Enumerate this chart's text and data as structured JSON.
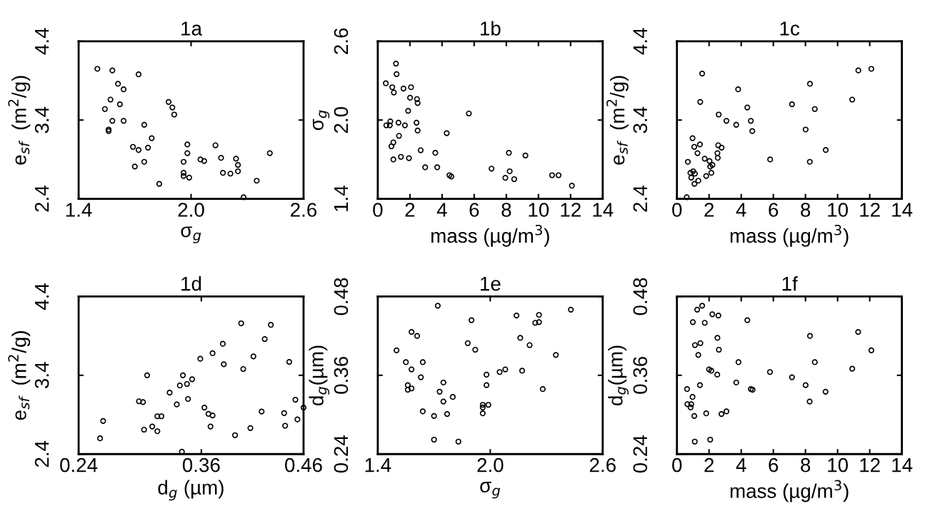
{
  "chart_data": [
    {
      "type": "scatter",
      "title": "1a",
      "xlabel": "σ$_{g}$",
      "ylabel": "e$_{sf}$  (m$^{2}$/g)",
      "xlim": [
        1.4,
        2.6
      ],
      "xticks": [
        1.4,
        {
          "value": 2.0,
          "label": "2.0"
        },
        2.6
      ],
      "ylim": [
        2.4,
        4.4
      ],
      "yticks": [
        2.4,
        3.4,
        4.4
      ],
      "marker": "circle",
      "grid": false,
      "series": [
        {
          "color": "#000000",
          "x": [
            1.5,
            1.58,
            1.72,
            1.61,
            1.64,
            1.57,
            1.62,
            1.54,
            1.58,
            1.64,
            1.56,
            1.56,
            1.75,
            1.88,
            1.9,
            1.91,
            1.79,
            1.69,
            1.72,
            1.77,
            1.75,
            1.7,
            1.83,
            1.98,
            1.98,
            1.96,
            1.96,
            1.96,
            1.99,
            2.05,
            2.07,
            2.13,
            2.16,
            2.17,
            2.21,
            2.24,
            2.25,
            2.25,
            2.35,
            2.42,
            2.28
          ],
          "values": [
            4.05,
            4.03,
            3.98,
            3.86,
            3.79,
            3.66,
            3.6,
            3.54,
            3.39,
            3.39,
            3.28,
            3.26,
            3.34,
            3.63,
            3.56,
            3.47,
            3.17,
            3.06,
            3.02,
            3.05,
            2.87,
            2.81,
            2.59,
            3.09,
            2.98,
            2.87,
            2.73,
            2.69,
            2.67,
            2.9,
            2.88,
            3.08,
            2.92,
            2.73,
            2.72,
            2.91,
            2.83,
            2.75,
            2.63,
            2.98,
            2.42
          ]
        }
      ]
    },
    {
      "type": "scatter",
      "title": "1b",
      "xlabel": "mass (µg/m$^{3}$)",
      "ylabel": "σ$_{g}$",
      "xlim": [
        0,
        14
      ],
      "xticks": [
        0,
        2,
        4,
        6,
        8,
        10,
        12,
        14
      ],
      "ylim": [
        1.4,
        2.6
      ],
      "yticks": [
        1.4,
        {
          "value": 2.0,
          "label": "2.0"
        },
        2.6
      ],
      "marker": "circle",
      "grid": false,
      "series": [
        {
          "color": "#000000",
          "x": [
            1.13,
            1.17,
            0.5,
            0.9,
            1.0,
            1.6,
            2.07,
            2.01,
            2.44,
            2.48,
            1.89,
            5.67,
            0.78,
            0.53,
            0.75,
            1.29,
            1.69,
            2.41,
            2.48,
            1.32,
            4.29,
            0.97,
            0.85,
            2.67,
            3.58,
            1.44,
            1.94,
            0.97,
            2.95,
            3.7,
            4.46,
            4.58,
            8.16,
            9.19,
            7.08,
            8.21,
            7.94,
            8.49,
            10.85,
            11.25,
            12.08
          ],
          "values": [
            2.43,
            2.35,
            2.28,
            2.25,
            2.21,
            2.24,
            2.25,
            2.17,
            2.16,
            2.13,
            2.07,
            2.05,
            1.99,
            1.96,
            1.96,
            1.98,
            1.96,
            1.98,
            1.92,
            1.88,
            1.9,
            1.83,
            1.8,
            1.77,
            1.75,
            1.72,
            1.71,
            1.7,
            1.64,
            1.64,
            1.58,
            1.57,
            1.75,
            1.73,
            1.63,
            1.61,
            1.56,
            1.55,
            1.58,
            1.58,
            1.5
          ]
        }
      ]
    },
    {
      "type": "scatter",
      "title": "1c",
      "xlabel": "mass (µg/m$^{3}$)",
      "ylabel": "e$_{sf}$  (m$^{2}$/g)",
      "xlim": [
        0,
        14
      ],
      "xticks": [
        0,
        2,
        4,
        6,
        8,
        10,
        12,
        14
      ],
      "ylim": [
        2.4,
        4.4
      ],
      "yticks": [
        2.4,
        3.4,
        4.4
      ],
      "marker": "circle",
      "grid": false,
      "series": [
        {
          "color": "#000000",
          "x": [
            1.57,
            12.1,
            11.29,
            8.28,
            3.81,
            1.45,
            7.16,
            10.91,
            4.38,
            8.58,
            2.6,
            3.08,
            4.6,
            3.69,
            4.69,
            8.01,
            0.97,
            1.08,
            1.43,
            1.28,
            2.57,
            2.78,
            2.52,
            2.54,
            9.26,
            0.68,
            1.73,
            2.03,
            2.21,
            2.07,
            5.8,
            8.27,
            0.84,
            1.01,
            1.12,
            2.14,
            0.89,
            1.82,
            1.33,
            1.09,
            0.61
          ],
          "values": [
            3.99,
            4.05,
            4.03,
            3.86,
            3.79,
            3.63,
            3.6,
            3.66,
            3.56,
            3.54,
            3.47,
            3.39,
            3.39,
            3.34,
            3.26,
            3.28,
            3.17,
            3.06,
            3.09,
            2.98,
            3.08,
            3.05,
            2.98,
            2.92,
            3.02,
            2.87,
            2.91,
            2.88,
            2.83,
            2.81,
            2.9,
            2.87,
            2.73,
            2.75,
            2.72,
            2.73,
            2.67,
            2.69,
            2.63,
            2.59,
            2.42
          ]
        }
      ]
    },
    {
      "type": "scatter",
      "title": "1d",
      "xlabel": "d$_{g}$ (µm)",
      "ylabel": "e$_{sf}$  (m$^{2}$/g)",
      "xlim": [
        0.24,
        0.46
      ],
      "xticks": [
        0.24,
        0.36,
        0.46
      ],
      "ylim": [
        2.4,
        4.4
      ],
      "yticks": [
        2.4,
        3.4,
        4.4
      ],
      "marker": "circle",
      "grid": false,
      "series": [
        {
          "color": "#000000",
          "x": [
            0.399,
            0.428,
            0.422,
            0.381,
            0.371,
            0.411,
            0.359,
            0.382,
            0.446,
            0.401,
            0.307,
            0.342,
            0.351,
            0.346,
            0.339,
            0.329,
            0.336,
            0.347,
            0.299,
            0.303,
            0.363,
            0.367,
            0.371,
            0.317,
            0.321,
            0.369,
            0.304,
            0.312,
            0.317,
            0.419,
            0.441,
            0.452,
            0.46,
            0.454,
            0.442,
            0.408,
            0.393,
            0.264,
            0.261,
            0.341
          ],
          "values": [
            4.06,
            4.04,
            3.86,
            3.8,
            3.68,
            3.64,
            3.61,
            3.54,
            3.57,
            3.48,
            3.4,
            3.4,
            3.35,
            3.29,
            3.27,
            3.18,
            3.03,
            3.1,
            3.07,
            3.06,
            2.99,
            2.91,
            2.89,
            2.88,
            2.88,
            2.75,
            2.71,
            2.75,
            2.69,
            2.94,
            2.92,
            3.09,
            2.99,
            2.84,
            2.76,
            2.73,
            2.64,
            2.82,
            2.6,
            2.43
          ]
        }
      ]
    },
    {
      "type": "scatter",
      "title": "1e",
      "xlabel": "σ$_{g}$",
      "ylabel": "d$_{g}$(µm)",
      "xlim": [
        1.4,
        2.6
      ],
      "xticks": [
        1.4,
        {
          "value": 2.0,
          "label": "2.0"
        },
        2.6
      ],
      "ylim": [
        0.24,
        0.48
      ],
      "yticks": [
        0.24,
        0.36,
        0.48
      ],
      "marker": "circle",
      "grid": false,
      "series": [
        {
          "color": "#000000",
          "x": [
            1.72,
            2.43,
            2.14,
            2.26,
            2.24,
            2.26,
            1.9,
            1.58,
            1.61,
            2.16,
            1.88,
            2.21,
            1.92,
            1.5,
            2.35,
            1.55,
            1.64,
            1.58,
            2.08,
            2.05,
            2.17,
            1.98,
            1.63,
            1.75,
            1.98,
            1.56,
            1.58,
            1.56,
            2.28,
            1.73,
            1.8,
            1.75,
            1.96,
            1.99,
            1.96,
            1.96,
            1.64,
            1.7,
            1.77,
            1.7,
            1.83
          ],
          "values": [
            0.466,
            0.46,
            0.451,
            0.452,
            0.44,
            0.441,
            0.444,
            0.426,
            0.42,
            0.417,
            0.409,
            0.406,
            0.399,
            0.398,
            0.391,
            0.38,
            0.38,
            0.369,
            0.369,
            0.365,
            0.367,
            0.361,
            0.357,
            0.349,
            0.345,
            0.345,
            0.34,
            0.338,
            0.339,
            0.335,
            0.327,
            0.32,
            0.315,
            0.315,
            0.311,
            0.302,
            0.305,
            0.298,
            0.301,
            0.262,
            0.259
          ]
        }
      ]
    },
    {
      "type": "scatter",
      "title": "1f",
      "xlabel": "mass (µg/m$^{3}$)",
      "ylabel": "d$_{g}$(µm)",
      "xlim": [
        0,
        14
      ],
      "xticks": [
        0,
        2,
        4,
        6,
        8,
        10,
        12,
        14
      ],
      "ylim": [
        0.24,
        0.48
      ],
      "yticks": [
        0.24,
        0.36,
        0.48
      ],
      "marker": "circle",
      "grid": false,
      "series": [
        {
          "color": "#000000",
          "x": [
            1.57,
            1.26,
            2.2,
            2.58,
            4.38,
            0.99,
            1.73,
            11.28,
            8.28,
            2.52,
            1.12,
            1.46,
            2.61,
            1.33,
            12.1,
            3.83,
            8.58,
            10.91,
            2.0,
            2.14,
            2.51,
            5.79,
            7.16,
            3.69,
            1.43,
            8.01,
            0.63,
            4.6,
            4.71,
            9.25,
            0.97,
            8.26,
            0.65,
            0.89,
            0.85,
            1.08,
            1.82,
            2.77,
            3.08,
            1.11,
            2.07
          ],
          "values": [
            0.466,
            0.46,
            0.453,
            0.451,
            0.444,
            0.441,
            0.44,
            0.426,
            0.42,
            0.417,
            0.406,
            0.409,
            0.399,
            0.391,
            0.398,
            0.38,
            0.38,
            0.37,
            0.369,
            0.367,
            0.361,
            0.365,
            0.357,
            0.349,
            0.345,
            0.345,
            0.339,
            0.339,
            0.338,
            0.335,
            0.327,
            0.32,
            0.316,
            0.316,
            0.311,
            0.298,
            0.302,
            0.301,
            0.305,
            0.259,
            0.262
          ]
        }
      ]
    }
  ]
}
